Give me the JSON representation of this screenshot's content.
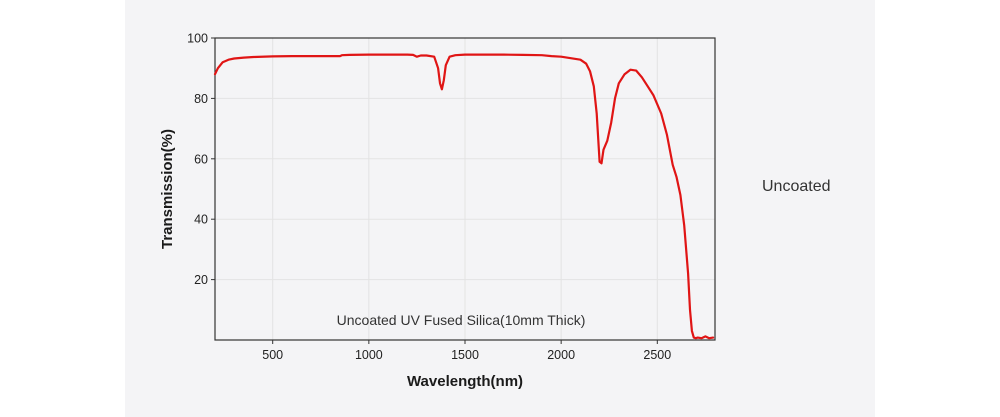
{
  "side_label": "Uncoated",
  "chart_data": {
    "type": "line",
    "title": "",
    "annotation": "Uncoated UV Fused Silica(10mm Thick)",
    "xlabel": "Wavelength(nm)",
    "ylabel": "Transmission(%)",
    "xlim": [
      200,
      2800
    ],
    "ylim": [
      0,
      100
    ],
    "xticks": [
      500,
      1000,
      1500,
      2000,
      2500
    ],
    "yticks": [
      20,
      40,
      60,
      80,
      100
    ],
    "grid": true,
    "legend": "none",
    "series": [
      {
        "name": "Uncoated UV Fused Silica",
        "color": "#e01515",
        "x": [
          200,
          215,
          240,
          270,
          300,
          350,
          400,
          500,
          600,
          700,
          800,
          850,
          860,
          900,
          1000,
          1100,
          1200,
          1230,
          1250,
          1270,
          1300,
          1340,
          1360,
          1370,
          1380,
          1390,
          1400,
          1420,
          1450,
          1500,
          1600,
          1700,
          1800,
          1900,
          1950,
          2000,
          2050,
          2100,
          2130,
          2150,
          2170,
          2185,
          2200,
          2210,
          2220,
          2240,
          2260,
          2280,
          2300,
          2330,
          2360,
          2390,
          2420,
          2450,
          2480,
          2520,
          2550,
          2580,
          2600,
          2620,
          2640,
          2660,
          2670,
          2680,
          2690,
          2700,
          2710,
          2730,
          2750,
          2770,
          2790
        ],
        "y": [
          88,
          90,
          92,
          92.8,
          93.2,
          93.5,
          93.7,
          93.9,
          94.0,
          94.0,
          94.0,
          94.0,
          94.3,
          94.4,
          94.5,
          94.5,
          94.5,
          94.4,
          93.8,
          94.2,
          94.2,
          93.8,
          90,
          85,
          83,
          86,
          91,
          93.8,
          94.3,
          94.5,
          94.5,
          94.5,
          94.4,
          94.3,
          94.0,
          93.8,
          93.3,
          92.8,
          91.5,
          89,
          84,
          75,
          59,
          58.5,
          63,
          66,
          72,
          80,
          85,
          88,
          89.5,
          89.2,
          87,
          84,
          81,
          75,
          68,
          58,
          54,
          48,
          38,
          22,
          10,
          3,
          0.8,
          0.6,
          0.8,
          0.6,
          1.2,
          0.6,
          0.8
        ]
      }
    ]
  }
}
